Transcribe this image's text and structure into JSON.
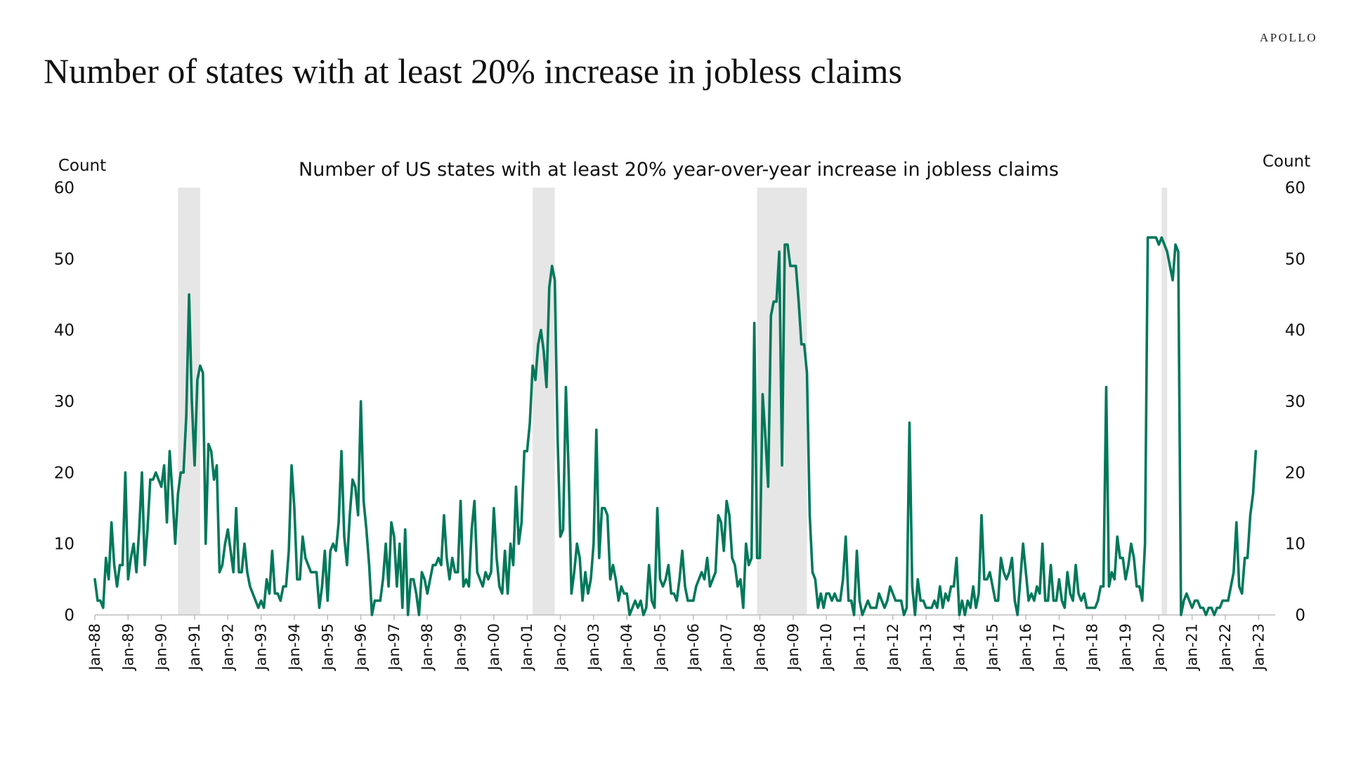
{
  "brand": "APOLLO",
  "page_title": "Number of  states with at least 20% increase in jobless claims",
  "chart_data": {
    "type": "line",
    "title": "Number of US states with at least 20% year-over-year increase in jobless claims",
    "ylabel_left": "Count",
    "ylabel_right": "Count",
    "ylim": [
      0,
      60
    ],
    "y_ticks": [
      0,
      10,
      20,
      30,
      40,
      50,
      60
    ],
    "x_ticks": [
      "Jan-88",
      "Jan-89",
      "Jan-90",
      "Jan-91",
      "Jan-92",
      "Jan-93",
      "Jan-94",
      "Jan-95",
      "Jan-96",
      "Jan-97",
      "Jan-98",
      "Jan-99",
      "Jan-00",
      "Jan-01",
      "Jan-02",
      "Jan-03",
      "Jan-04",
      "Jan-05",
      "Jan-06",
      "Jan-07",
      "Jan-08",
      "Jan-09",
      "Jan-10",
      "Jan-11",
      "Jan-12",
      "Jan-13",
      "Jan-14",
      "Jan-15",
      "Jan-16",
      "Jan-17",
      "Jan-18",
      "Jan-19",
      "Jan-20",
      "Jan-21",
      "Jan-22",
      "Jan-23"
    ],
    "line_color": "#00785A",
    "recession_color": "#E6E6E6",
    "recessions": [
      {
        "start": "1990-07",
        "end": "1991-03"
      },
      {
        "start": "2001-03",
        "end": "2001-11"
      },
      {
        "start": "2007-12",
        "end": "2009-06"
      },
      {
        "start": "2020-02",
        "end": "2020-04"
      }
    ],
    "series": [
      {
        "start": "1988-01",
        "frequency": "monthly",
        "values": [
          5,
          2,
          2,
          1,
          8,
          5,
          13,
          7,
          4,
          7,
          7,
          20,
          5,
          8,
          10,
          6,
          12,
          20,
          7,
          12,
          19,
          19,
          20,
          19,
          18,
          21,
          13,
          23,
          17,
          10,
          17,
          20,
          20,
          28,
          45,
          30,
          21,
          33,
          35,
          34,
          10,
          24,
          23,
          19,
          21,
          6,
          7,
          10,
          12,
          9,
          6,
          15,
          6,
          6,
          10,
          6,
          4,
          3,
          2,
          1,
          2,
          1,
          5,
          3,
          9,
          3,
          3,
          2,
          4,
          4,
          9,
          21,
          15,
          5,
          5,
          11,
          8,
          7,
          6,
          6,
          6,
          1,
          4,
          9,
          2,
          9,
          10,
          9,
          13,
          23,
          11,
          7,
          14,
          19,
          18,
          14,
          30,
          16,
          12,
          7,
          0,
          2,
          2,
          2,
          5,
          10,
          4,
          13,
          11,
          4,
          10,
          1,
          12,
          0,
          5,
          5,
          3,
          0,
          6,
          5,
          3,
          5,
          7,
          7,
          8,
          7,
          14,
          8,
          5,
          8,
          6,
          6,
          16,
          4,
          5,
          4,
          12,
          16,
          6,
          5,
          4,
          6,
          5,
          6,
          15,
          8,
          4,
          3,
          9,
          3,
          10,
          7,
          18,
          10,
          13,
          23,
          23,
          27,
          35,
          33,
          38,
          40,
          37,
          32,
          46,
          49,
          47,
          25,
          11,
          12,
          32,
          20,
          3,
          6,
          10,
          8,
          2,
          6,
          3,
          5,
          10,
          26,
          8,
          15,
          15,
          14,
          5,
          7,
          5,
          2,
          4,
          3,
          3,
          0,
          1,
          2,
          1,
          2,
          0,
          1,
          7,
          2,
          1,
          15,
          5,
          4,
          5,
          7,
          3,
          3,
          2,
          5,
          9,
          4,
          2,
          2,
          2,
          4,
          5,
          6,
          5,
          8,
          4,
          5,
          6,
          14,
          13,
          9,
          16,
          14,
          8,
          7,
          4,
          5,
          1,
          10,
          7,
          8,
          41,
          8,
          8,
          31,
          25,
          18,
          42,
          44,
          44,
          51,
          21,
          52,
          52,
          49,
          49,
          49,
          44,
          38,
          38,
          34,
          14,
          6,
          5,
          1,
          3,
          1,
          3,
          3,
          2,
          3,
          2,
          2,
          5,
          11,
          2,
          2,
          0,
          9,
          2,
          0,
          1,
          2,
          1,
          1,
          1,
          3,
          2,
          1,
          2,
          4,
          3,
          2,
          2,
          2,
          0,
          1,
          27,
          4,
          0,
          5,
          2,
          2,
          1,
          1,
          1,
          2,
          1,
          4,
          1,
          3,
          2,
          4,
          4,
          8,
          0,
          2,
          0,
          2,
          1,
          4,
          1,
          3,
          14,
          5,
          5,
          6,
          4,
          2,
          2,
          8,
          6,
          5,
          6,
          8,
          2,
          0,
          5,
          10,
          6,
          2,
          3,
          2,
          4,
          3,
          10,
          2,
          2,
          7,
          2,
          2,
          5,
          2,
          1,
          6,
          3,
          2,
          7,
          3,
          2,
          3,
          1,
          1,
          1,
          1,
          2,
          4,
          4,
          32,
          4,
          6,
          5,
          11,
          8,
          8,
          5,
          7,
          10,
          8,
          4,
          4,
          2,
          10,
          53,
          53,
          53,
          53,
          52,
          53,
          52,
          51,
          49,
          47,
          52,
          51,
          0,
          2,
          3,
          2,
          1,
          2,
          2,
          1,
          1,
          0,
          1,
          1,
          0,
          1,
          1,
          2,
          2,
          2,
          4,
          6,
          13,
          4,
          3,
          8,
          8,
          14,
          17,
          23
        ]
      }
    ]
  }
}
